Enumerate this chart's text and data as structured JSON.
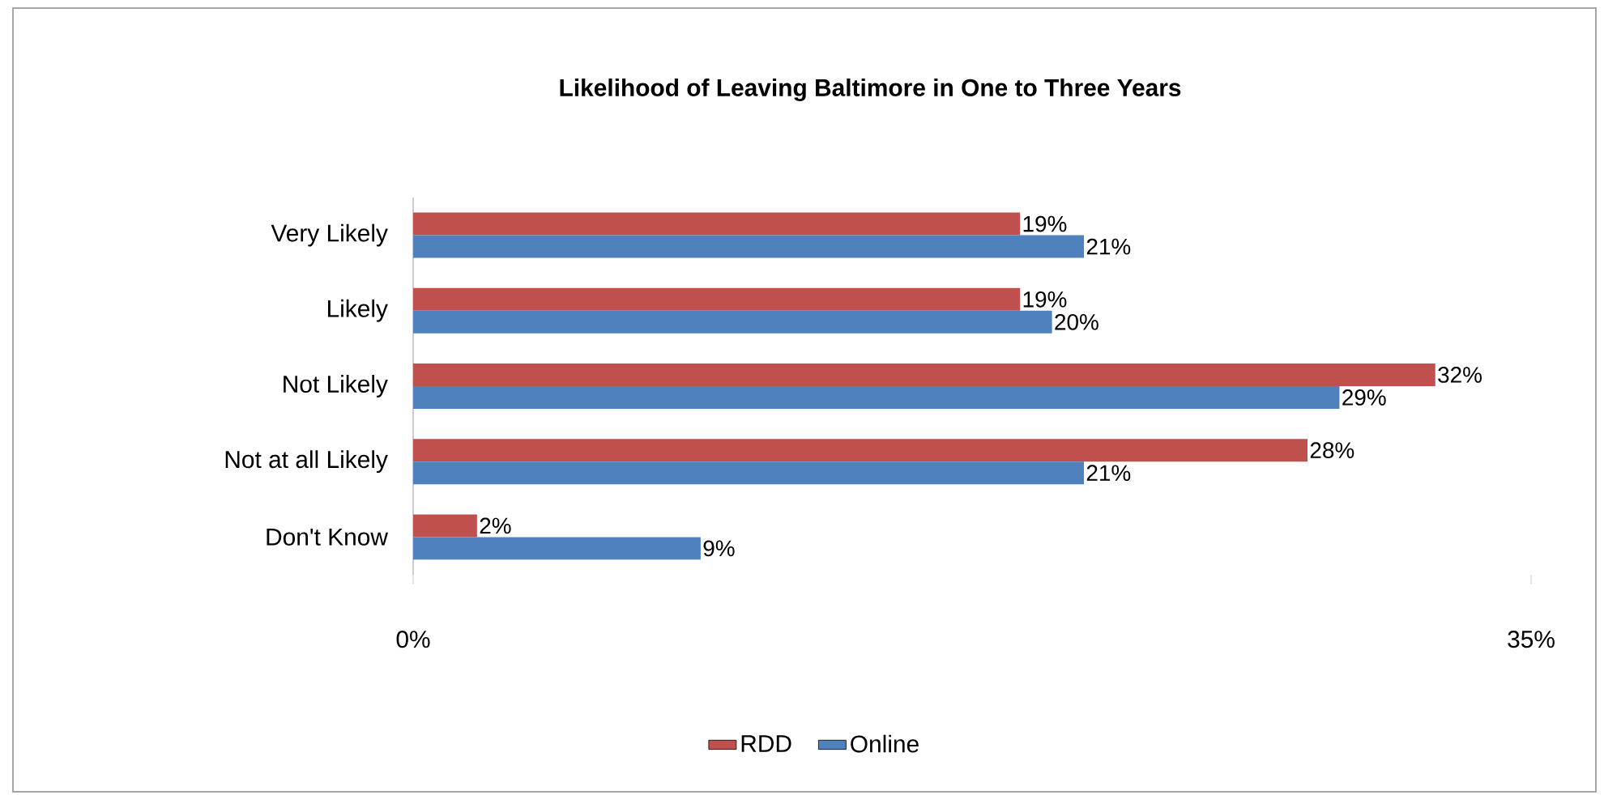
{
  "chart_data": {
    "type": "bar",
    "orientation": "horizontal",
    "title": "Likelihood of Leaving Baltimore  in One to Three Years",
    "categories": [
      "Very Likely",
      "Likely",
      "Not Likely",
      "Not at all Likely",
      "Don't Know"
    ],
    "series": [
      {
        "name": "RDD",
        "color": "#c0504d",
        "values": [
          19,
          19,
          32,
          28,
          2
        ],
        "value_labels": [
          "19%",
          "19%",
          "32%",
          "28%",
          "2%"
        ]
      },
      {
        "name": "Online",
        "color": "#4f81bd",
        "values": [
          21,
          20,
          29,
          21,
          9
        ],
        "value_labels": [
          "21%",
          "20%",
          "29%",
          "21%",
          "9%"
        ]
      }
    ],
    "xlim": [
      0,
      35
    ],
    "xticks": [
      {
        "value": 0,
        "label": "0%"
      },
      {
        "value": 35,
        "label": "35%"
      }
    ],
    "legend": "bottom",
    "grid": false
  }
}
